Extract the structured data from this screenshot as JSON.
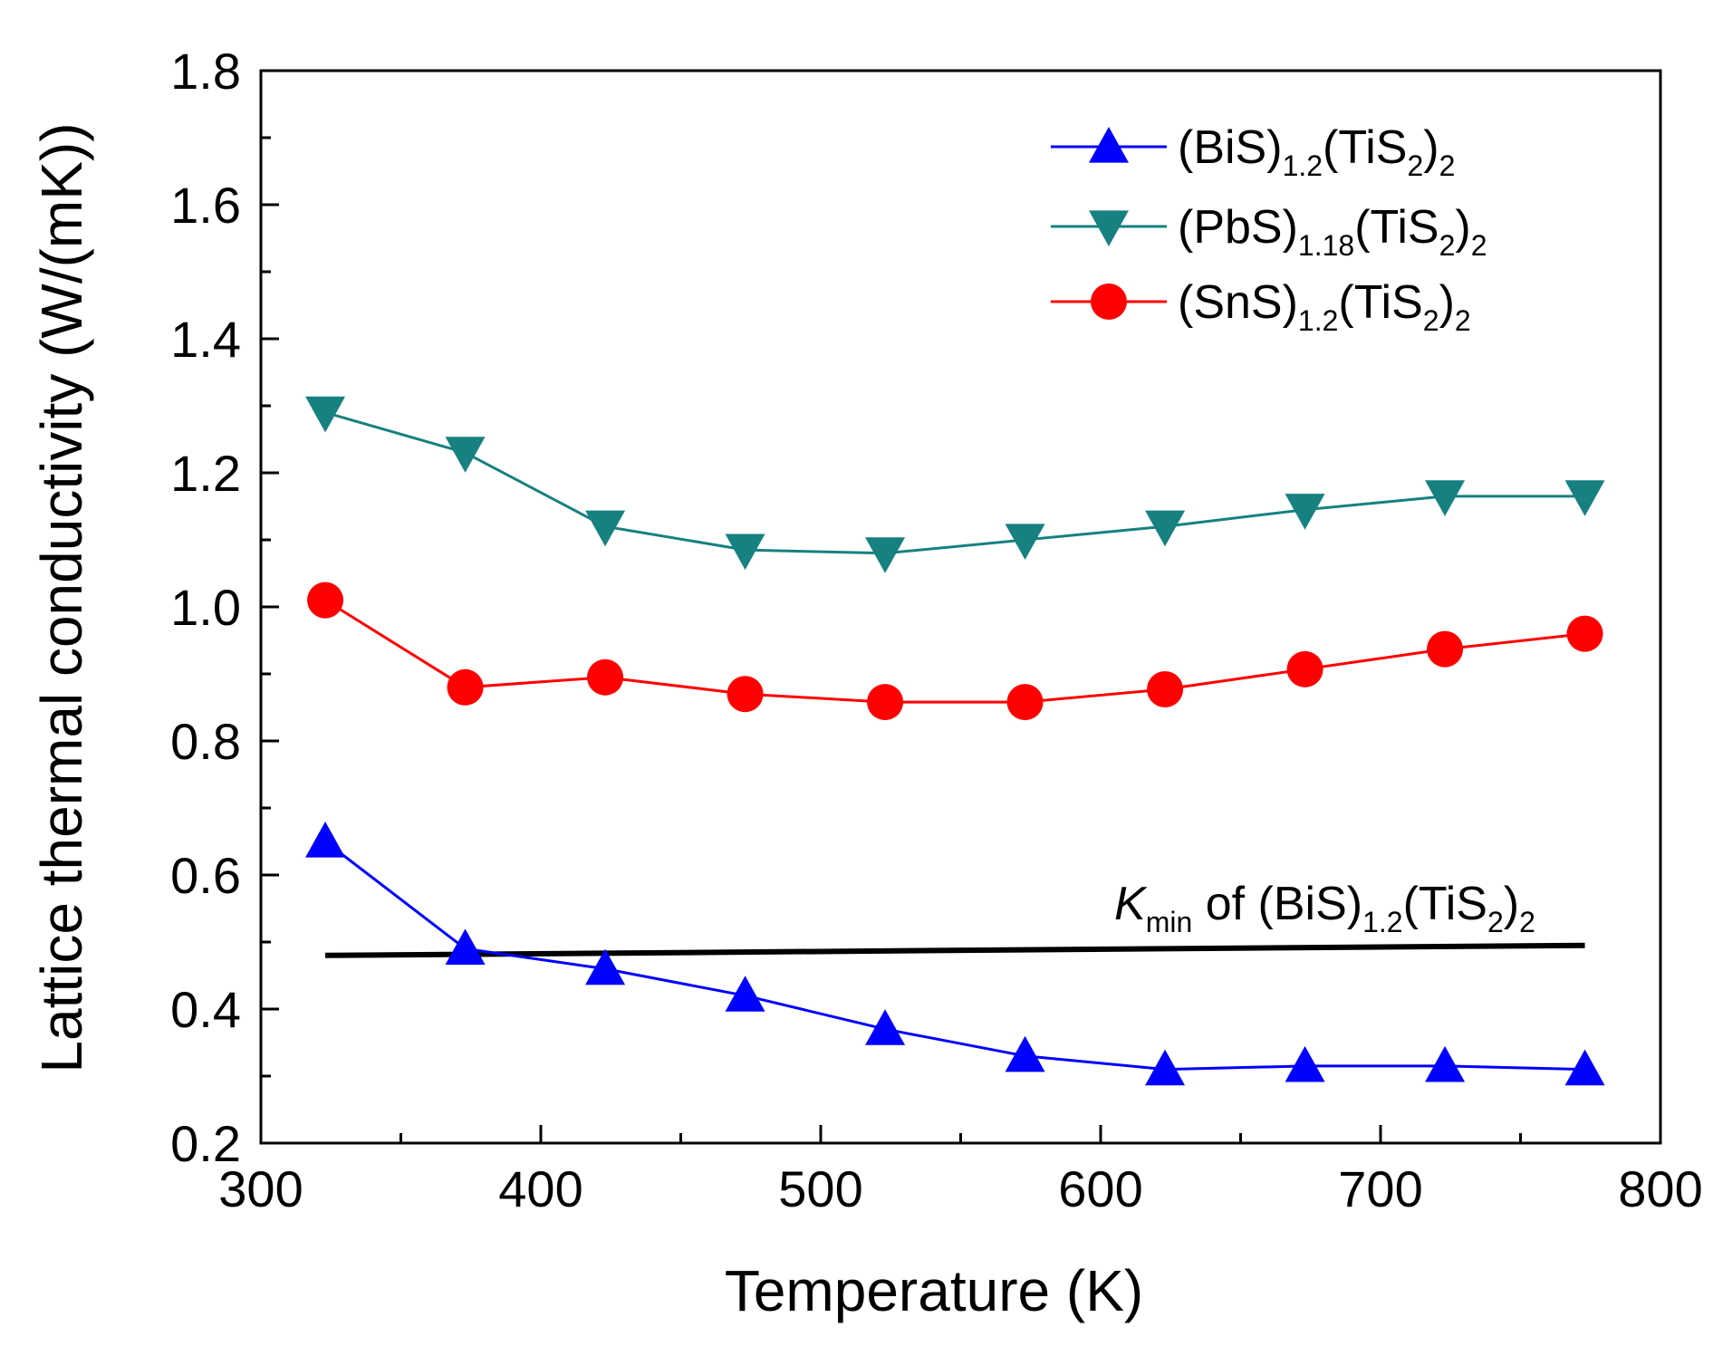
{
  "chart_data": {
    "type": "line",
    "title": "",
    "xlabel": "Temperature (K)",
    "ylabel": "Lattice thermal conductivity (W/(mK))",
    "xlim": [
      300,
      800
    ],
    "ylim": [
      0.2,
      1.8
    ],
    "xticks": [
      "300",
      "400",
      "500",
      "600",
      "700",
      "800"
    ],
    "yticks": [
      "0.2",
      "0.4",
      "0.6",
      "0.8",
      "1.0",
      "1.2",
      "1.4",
      "1.6",
      "1.8"
    ],
    "x": [
      323,
      373,
      423,
      473,
      523,
      573,
      623,
      673,
      723,
      773
    ],
    "legend_position": "top-right",
    "series": [
      {
        "name": "(BiS)1.2(TiS2)2",
        "legend": {
          "a": "(BiS)",
          "b": "1.2",
          "c": "(TiS",
          "d": "2",
          "e": ")",
          "f": "2"
        },
        "color": "#0000ff",
        "marker": "triangle-up",
        "values": [
          0.65,
          0.49,
          0.46,
          0.42,
          0.37,
          0.33,
          0.31,
          0.315,
          0.315,
          0.31
        ]
      },
      {
        "name": "(PbS)1.18(TiS2)2",
        "legend": {
          "a": "(PbS)",
          "b": "1.18",
          "c": "(TiS",
          "d": "2",
          "e": ")",
          "f": "2"
        },
        "color": "#178080",
        "marker": "triangle-down",
        "values": [
          1.29,
          1.23,
          1.12,
          1.085,
          1.08,
          1.1,
          1.12,
          1.145,
          1.165,
          1.165
        ]
      },
      {
        "name": "(SnS)1.2(TiS2)2",
        "legend": {
          "a": "(SnS)",
          "b": "1.2",
          "c": "(TiS",
          "d": "2",
          "e": ")",
          "f": "2"
        },
        "color": "#ff0000",
        "marker": "circle",
        "values": [
          1.01,
          0.88,
          0.895,
          0.87,
          0.858,
          0.858,
          0.877,
          0.907,
          0.937,
          0.96
        ]
      }
    ],
    "reference_line": {
      "x": [
        323,
        773
      ],
      "values": [
        0.48,
        0.495
      ],
      "color": "#000000",
      "label": {
        "k": "K",
        "min": "min",
        "rest": " of (BiS)",
        "b": "1.2",
        "c": "(TiS",
        "d": "2",
        "e": ")",
        "f": "2"
      }
    }
  }
}
